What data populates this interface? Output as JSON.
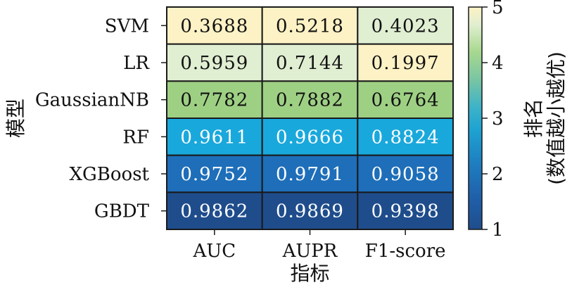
{
  "chart_data": {
    "type": "heatmap",
    "rows": [
      "SVM",
      "LR",
      "GaussianNB",
      "RF",
      "XGBoost",
      "GBDT"
    ],
    "columns": [
      "AUC",
      "AUPR",
      "F1-score"
    ],
    "values": [
      [
        "0.3688",
        "0.5218",
        "0.4023"
      ],
      [
        "0.5959",
        "0.7144",
        "0.1997"
      ],
      [
        "0.7782",
        "0.7882",
        "0.6764"
      ],
      [
        "0.9611",
        "0.9666",
        "0.8824"
      ],
      [
        "0.9752",
        "0.9791",
        "0.9058"
      ],
      [
        "0.9862",
        "0.9869",
        "0.9398"
      ]
    ],
    "ranks": [
      [
        5,
        5,
        4.5
      ],
      [
        4.5,
        4.5,
        5
      ],
      [
        4,
        4,
        4
      ],
      [
        3,
        3,
        3
      ],
      [
        2,
        2,
        2
      ],
      [
        1,
        1,
        1
      ]
    ],
    "xlabel": "指标",
    "ylabel": "模型",
    "colorbar": {
      "label_line1": "排名",
      "label_line2": "(数值越小越优)",
      "ticks": [
        1,
        2,
        3,
        4,
        5
      ],
      "range": [
        1,
        5
      ],
      "colormap": "YlGnBu_r"
    }
  }
}
